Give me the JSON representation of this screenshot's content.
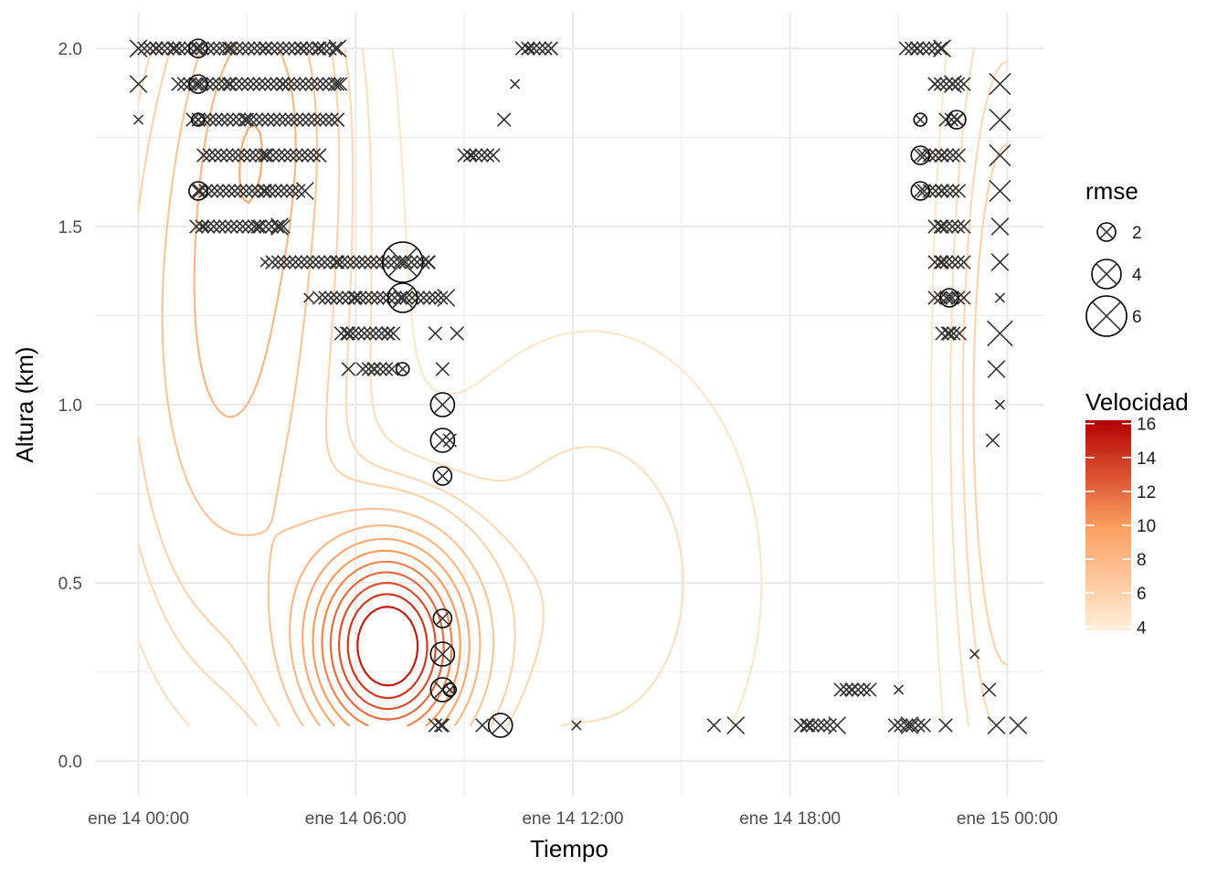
{
  "chart_data": {
    "type": "contour",
    "xlabel": "Tiempo",
    "ylabel": "Altura (km)",
    "x_unit": "hours since ene 14 00:00",
    "x_ticks": [
      {
        "value": 0,
        "label": "ene 14 00:00"
      },
      {
        "value": 6,
        "label": "ene 14 06:00"
      },
      {
        "value": 12,
        "label": "ene 14 12:00"
      },
      {
        "value": 18,
        "label": "ene 14 18:00"
      },
      {
        "value": 24,
        "label": "ene 15 00:00"
      }
    ],
    "x_minor_ticks": [
      3,
      9,
      15,
      21
    ],
    "y_ticks": [
      {
        "value": 0.0,
        "label": "0.0"
      },
      {
        "value": 0.5,
        "label": "0.5"
      },
      {
        "value": 1.0,
        "label": "1.0"
      },
      {
        "value": 1.5,
        "label": "1.5"
      },
      {
        "value": 2.0,
        "label": "2.0"
      }
    ],
    "y_minor_ticks": [
      0.25,
      0.75,
      1.25,
      1.75
    ],
    "xlim": [
      -1.2,
      25.0
    ],
    "ylim": [
      -0.1,
      2.1
    ],
    "grid": true,
    "velocity_field": {
      "background": 4.2,
      "bumps": [
        {
          "name": "jet",
          "cx": 6.9,
          "cy": 0.32,
          "sx": 2.2,
          "sy": 0.3,
          "amp": 12.0
        },
        {
          "name": "upper-left",
          "cx": 2.5,
          "cy": 1.2,
          "sx": 3.0,
          "sy": 0.9,
          "amp": 4.0
        },
        {
          "name": "upper-left-top",
          "cx": 3.5,
          "cy": 1.9,
          "sx": 2.0,
          "sy": 0.5,
          "amp": 2.5
        },
        {
          "name": "right-edge",
          "cx": 24.0,
          "cy": 1.0,
          "sx": 1.4,
          "sy": 1.1,
          "amp": 2.8
        },
        {
          "name": "mid",
          "cx": 12.5,
          "cy": 0.5,
          "sx": 4.0,
          "sy": 0.6,
          "amp": 1.2
        }
      ],
      "contour_levels": [
        4.5,
        5,
        5.5,
        6,
        7,
        8,
        9,
        10,
        11,
        12,
        13,
        14,
        15
      ]
    },
    "points": [
      {
        "x": 0.0,
        "y": 2.0,
        "r": 3
      },
      {
        "x": 0.5,
        "y": 2.0,
        "r": 2
      },
      {
        "x": 1.0,
        "y": 2.0,
        "r": 2
      },
      {
        "x": 1.65,
        "y": 2.0,
        "r": 2,
        "hollow": true
      },
      {
        "x": 2.5,
        "y": 2.0,
        "r": 2
      },
      {
        "x": 3.5,
        "y": 2.0,
        "r": 2
      },
      {
        "x": 4.5,
        "y": 2.0,
        "r": 2
      },
      {
        "x": 5.0,
        "y": 2.0,
        "r": 2
      },
      {
        "x": 5.5,
        "y": 2.0,
        "r": 3
      },
      {
        "x": 0.0,
        "y": 1.9,
        "r": 3
      },
      {
        "x": 1.65,
        "y": 1.9,
        "r": 2,
        "hollow": true
      },
      {
        "x": 2.5,
        "y": 1.9,
        "r": 2
      },
      {
        "x": 4.0,
        "y": 1.9,
        "r": 2
      },
      {
        "x": 5.5,
        "y": 1.9,
        "r": 2
      },
      {
        "x": 0.0,
        "y": 1.8,
        "r": 1
      },
      {
        "x": 1.65,
        "y": 1.8,
        "r": 1,
        "hollow": true
      },
      {
        "x": 3.0,
        "y": 1.8,
        "r": 2
      },
      {
        "x": 5.5,
        "y": 1.8,
        "r": 2
      },
      {
        "x": 1.8,
        "y": 1.7,
        "r": 1
      },
      {
        "x": 3.5,
        "y": 1.7,
        "r": 2
      },
      {
        "x": 5.0,
        "y": 1.7,
        "r": 2
      },
      {
        "x": 1.65,
        "y": 1.6,
        "r": 2,
        "hollow": true
      },
      {
        "x": 3.5,
        "y": 1.6,
        "r": 2
      },
      {
        "x": 4.6,
        "y": 1.6,
        "r": 3
      },
      {
        "x": 1.8,
        "y": 1.5,
        "r": 1
      },
      {
        "x": 3.3,
        "y": 1.5,
        "r": 2
      },
      {
        "x": 3.9,
        "y": 1.5,
        "r": 3
      },
      {
        "x": 3.5,
        "y": 1.4,
        "r": 1
      },
      {
        "x": 5.5,
        "y": 1.4,
        "r": 2
      },
      {
        "x": 7.3,
        "y": 1.4,
        "r": 6,
        "hollow": true
      },
      {
        "x": 8.0,
        "y": 1.4,
        "r": 2
      },
      {
        "x": 4.7,
        "y": 1.3,
        "r": 1
      },
      {
        "x": 6.0,
        "y": 1.3,
        "r": 2
      },
      {
        "x": 7.3,
        "y": 1.3,
        "r": 4,
        "hollow": true
      },
      {
        "x": 8.5,
        "y": 1.3,
        "r": 3
      },
      {
        "x": 5.8,
        "y": 1.2,
        "r": 2
      },
      {
        "x": 6.9,
        "y": 1.2,
        "r": 2
      },
      {
        "x": 8.2,
        "y": 1.2,
        "r": 2
      },
      {
        "x": 8.8,
        "y": 1.2,
        "r": 2
      },
      {
        "x": 5.8,
        "y": 1.1,
        "r": 2
      },
      {
        "x": 6.5,
        "y": 1.1,
        "r": 2
      },
      {
        "x": 7.3,
        "y": 1.1,
        "r": 1,
        "hollow": true
      },
      {
        "x": 8.4,
        "y": 1.1,
        "r": 2
      },
      {
        "x": 8.4,
        "y": 1.0,
        "r": 3,
        "hollow": true
      },
      {
        "x": 8.4,
        "y": 0.9,
        "r": 3,
        "hollow": true
      },
      {
        "x": 8.6,
        "y": 0.9,
        "r": 2
      },
      {
        "x": 8.4,
        "y": 0.8,
        "r": 2,
        "hollow": true
      },
      {
        "x": 8.4,
        "y": 0.4,
        "r": 2,
        "hollow": true
      },
      {
        "x": 8.4,
        "y": 0.3,
        "r": 3,
        "hollow": true
      },
      {
        "x": 8.4,
        "y": 0.2,
        "r": 3,
        "hollow": true
      },
      {
        "x": 8.6,
        "y": 0.2,
        "r": 1,
        "hollow": true
      },
      {
        "x": 8.4,
        "y": 0.1,
        "r": 2
      },
      {
        "x": 9.5,
        "y": 0.1,
        "r": 2
      },
      {
        "x": 10.0,
        "y": 0.1,
        "r": 3,
        "hollow": true
      },
      {
        "x": 12.1,
        "y": 0.1,
        "r": 1
      },
      {
        "x": 15.9,
        "y": 0.1,
        "r": 2
      },
      {
        "x": 16.5,
        "y": 0.1,
        "r": 3
      },
      {
        "x": 18.5,
        "y": 0.1,
        "r": 2
      },
      {
        "x": 19.3,
        "y": 0.1,
        "r": 3
      },
      {
        "x": 21.3,
        "y": 0.1,
        "r": 3
      },
      {
        "x": 22.3,
        "y": 0.1,
        "r": 2
      },
      {
        "x": 23.7,
        "y": 0.1,
        "r": 3
      },
      {
        "x": 24.3,
        "y": 0.1,
        "r": 3
      },
      {
        "x": 10.8,
        "y": 2.0,
        "r": 1
      },
      {
        "x": 11.4,
        "y": 2.0,
        "r": 2
      },
      {
        "x": 10.4,
        "y": 1.9,
        "r": 1
      },
      {
        "x": 10.1,
        "y": 1.8,
        "r": 2
      },
      {
        "x": 9.2,
        "y": 1.7,
        "r": 1
      },
      {
        "x": 21.5,
        "y": 2.0,
        "r": 2
      },
      {
        "x": 22.2,
        "y": 2.0,
        "r": 3
      },
      {
        "x": 22.0,
        "y": 1.9,
        "r": 2
      },
      {
        "x": 22.5,
        "y": 1.9,
        "r": 3
      },
      {
        "x": 23.8,
        "y": 1.9,
        "r": 4
      },
      {
        "x": 21.6,
        "y": 1.8,
        "r": 1,
        "hollow": true
      },
      {
        "x": 22.6,
        "y": 1.8,
        "r": 2,
        "hollow": true
      },
      {
        "x": 23.8,
        "y": 1.8,
        "r": 4
      },
      {
        "x": 21.6,
        "y": 1.7,
        "r": 2,
        "hollow": true
      },
      {
        "x": 22.2,
        "y": 1.7,
        "r": 2
      },
      {
        "x": 23.8,
        "y": 1.7,
        "r": 4
      },
      {
        "x": 21.6,
        "y": 1.6,
        "r": 2,
        "hollow": true
      },
      {
        "x": 22.2,
        "y": 1.6,
        "r": 2
      },
      {
        "x": 23.8,
        "y": 1.6,
        "r": 4
      },
      {
        "x": 22.2,
        "y": 1.5,
        "r": 2
      },
      {
        "x": 23.8,
        "y": 1.5,
        "r": 3
      },
      {
        "x": 22.2,
        "y": 1.4,
        "r": 2
      },
      {
        "x": 23.8,
        "y": 1.4,
        "r": 3
      },
      {
        "x": 22.4,
        "y": 1.3,
        "r": 2,
        "hollow": true
      },
      {
        "x": 23.8,
        "y": 1.3,
        "r": 1
      },
      {
        "x": 22.4,
        "y": 1.2,
        "r": 2
      },
      {
        "x": 23.8,
        "y": 1.2,
        "r": 5
      },
      {
        "x": 23.7,
        "y": 1.1,
        "r": 3
      },
      {
        "x": 23.8,
        "y": 1.0,
        "r": 1
      },
      {
        "x": 23.6,
        "y": 0.9,
        "r": 2
      },
      {
        "x": 23.1,
        "y": 0.3,
        "r": 1
      },
      {
        "x": 23.5,
        "y": 0.2,
        "r": 2
      },
      {
        "x": 19.7,
        "y": 0.2,
        "r": 2
      },
      {
        "x": 20.2,
        "y": 0.2,
        "r": 2
      },
      {
        "x": 21.0,
        "y": 0.2,
        "r": 1
      }
    ],
    "point_rows": [
      {
        "y": 2.0,
        "x_start": 0.0,
        "x_end": 5.5,
        "step": 0.16,
        "r": 2
      },
      {
        "y": 1.9,
        "x_start": 1.1,
        "x_end": 5.6,
        "step": 0.16,
        "r": 2
      },
      {
        "y": 1.8,
        "x_start": 1.5,
        "x_end": 5.6,
        "step": 0.16,
        "r": 2
      },
      {
        "y": 1.7,
        "x_start": 1.8,
        "x_end": 5.1,
        "step": 0.16,
        "r": 2
      },
      {
        "y": 1.6,
        "x_start": 1.7,
        "x_end": 4.5,
        "step": 0.16,
        "r": 2
      },
      {
        "y": 1.5,
        "x_start": 1.6,
        "x_end": 4.0,
        "step": 0.16,
        "r": 2
      },
      {
        "y": 1.4,
        "x_start": 3.7,
        "x_end": 8.1,
        "step": 0.16,
        "r": 2
      },
      {
        "y": 1.3,
        "x_start": 5.0,
        "x_end": 8.4,
        "step": 0.16,
        "r": 2
      },
      {
        "y": 1.2,
        "x_start": 5.6,
        "x_end": 7.1,
        "step": 0.16,
        "r": 2
      },
      {
        "y": 1.1,
        "x_start": 6.2,
        "x_end": 7.0,
        "step": 0.16,
        "r": 2
      },
      {
        "y": 2.0,
        "x_start": 10.6,
        "x_end": 11.5,
        "step": 0.16,
        "r": 2
      },
      {
        "y": 1.7,
        "x_start": 9.0,
        "x_end": 9.8,
        "step": 0.16,
        "r": 2
      },
      {
        "y": 2.0,
        "x_start": 21.2,
        "x_end": 22.3,
        "step": 0.16,
        "r": 2
      },
      {
        "y": 1.9,
        "x_start": 22.0,
        "x_end": 22.9,
        "step": 0.16,
        "r": 2
      },
      {
        "y": 1.8,
        "x_start": 22.3,
        "x_end": 22.7,
        "step": 0.16,
        "r": 2
      },
      {
        "y": 1.7,
        "x_start": 21.7,
        "x_end": 22.7,
        "step": 0.16,
        "r": 2
      },
      {
        "y": 1.6,
        "x_start": 21.7,
        "x_end": 22.7,
        "step": 0.16,
        "r": 2
      },
      {
        "y": 1.5,
        "x_start": 22.0,
        "x_end": 22.8,
        "step": 0.16,
        "r": 2
      },
      {
        "y": 1.4,
        "x_start": 22.0,
        "x_end": 22.8,
        "step": 0.16,
        "r": 2
      },
      {
        "y": 1.3,
        "x_start": 22.0,
        "x_end": 22.8,
        "step": 0.16,
        "r": 2
      },
      {
        "y": 1.2,
        "x_start": 22.2,
        "x_end": 22.7,
        "step": 0.16,
        "r": 2
      },
      {
        "y": 0.1,
        "x_start": 8.2,
        "x_end": 8.5,
        "step": 0.16,
        "r": 2
      },
      {
        "y": 0.1,
        "x_start": 18.3,
        "x_end": 19.2,
        "step": 0.16,
        "r": 2
      },
      {
        "y": 0.1,
        "x_start": 20.9,
        "x_end": 21.8,
        "step": 0.16,
        "r": 2
      },
      {
        "y": 0.2,
        "x_start": 19.4,
        "x_end": 20.1,
        "step": 0.16,
        "r": 2
      }
    ],
    "legends": [
      {
        "title": "rmse",
        "type": "size",
        "items": [
          {
            "label": "2",
            "r": 2
          },
          {
            "label": "4",
            "r": 4
          },
          {
            "label": "6",
            "r": 6
          }
        ]
      },
      {
        "title": "Velocidad",
        "type": "colorbar",
        "min": 3.8,
        "max": 16.2,
        "ticks": [
          "4",
          "6",
          "8",
          "10",
          "12",
          "14",
          "16"
        ],
        "tick_values": [
          4,
          6,
          8,
          10,
          12,
          14,
          16
        ],
        "color_low": "#fff0d9",
        "color_mid": "#fc9d5e",
        "color_high": "#b30000"
      }
    ],
    "colors": {
      "grid": "#ebebeb",
      "marker": "#333333",
      "scale_low": "#fff0d9",
      "scale_mid": "#fc9d5e",
      "scale_high": "#b30000"
    }
  }
}
